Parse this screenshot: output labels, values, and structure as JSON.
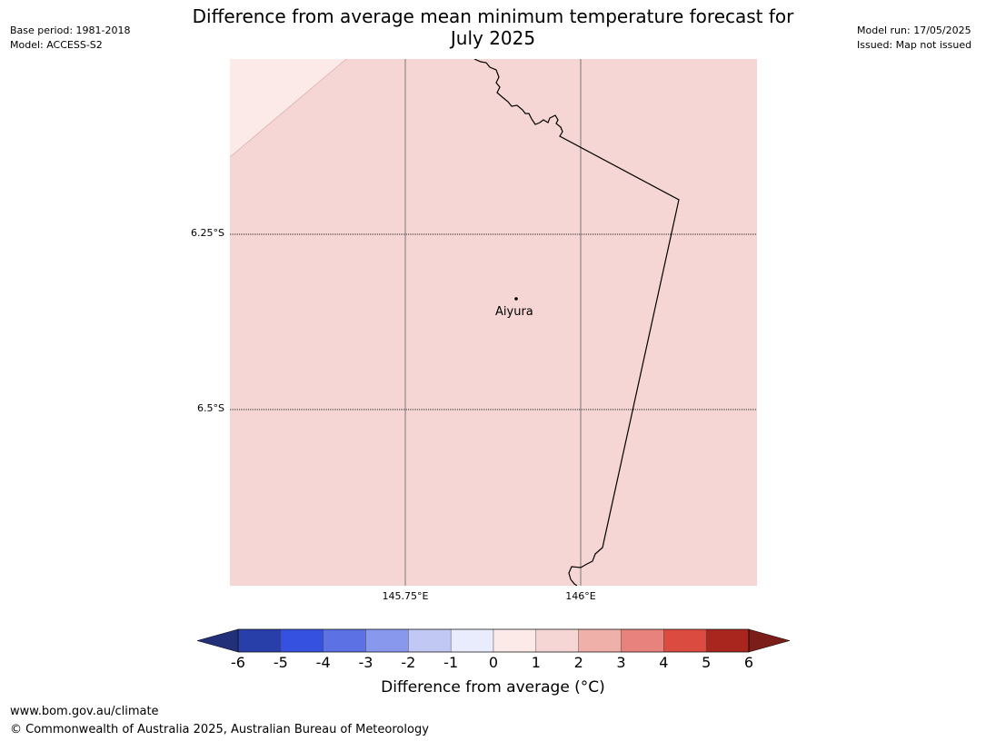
{
  "header": {
    "title_line1": "Difference from average mean minimum temperature forecast for",
    "title_line2": "July 2025",
    "base_period": "Base period: 1981-2018",
    "model": "Model: ACCESS-S2",
    "model_run": "Model run: 17/05/2025",
    "issued": "Issued: Map not issued"
  },
  "map": {
    "lat_labels": [
      "6.25°S",
      "6.5°S"
    ],
    "lon_labels": [
      "145.75°E",
      "146°E"
    ],
    "place": {
      "name": "Aiyura"
    },
    "fill_color": "#f5d6d4",
    "corner_color": "#fbeae8"
  },
  "colorbar": {
    "ticks": [
      "-6",
      "-5",
      "-4",
      "-3",
      "-2",
      "-1",
      "0",
      "1",
      "2",
      "3",
      "4",
      "5",
      "6"
    ],
    "colors": [
      "#283ea8",
      "#3451e0",
      "#5c72e4",
      "#8898ec",
      "#c2c8f4",
      "#e9ecfc",
      "#fbeae8",
      "#f5d6d4",
      "#efb0aa",
      "#e7827d",
      "#db4b40",
      "#a9261f"
    ],
    "under_color": "#22307a",
    "over_color": "#7b1e19",
    "label": "Difference from average (°C)"
  },
  "footer": {
    "url": "www.bom.gov.au/climate",
    "copyright": "© Commonwealth of Australia 2025, Australian Bureau of Meteorology"
  }
}
